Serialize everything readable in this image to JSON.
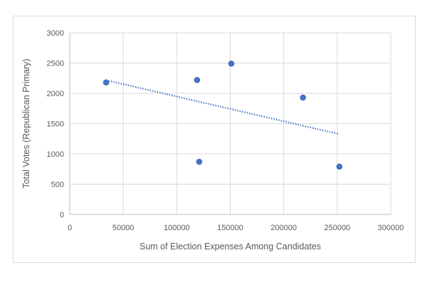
{
  "chart_data": {
    "type": "scatter",
    "title": "",
    "xlabel": "Sum of Election Expenses Among Candidates",
    "ylabel": "Total Votes (Republican Primary)",
    "xlim": [
      0,
      300000
    ],
    "ylim": [
      0,
      3000
    ],
    "x_ticks": [
      0,
      50000,
      100000,
      150000,
      200000,
      250000,
      300000
    ],
    "y_ticks": [
      0,
      500,
      1000,
      1500,
      2000,
      2500,
      3000
    ],
    "x_tick_labels": [
      "0",
      "50000",
      "100000",
      "150000",
      "200000",
      "250000",
      "300000"
    ],
    "y_tick_labels": [
      "0",
      "500",
      "1000",
      "1500",
      "2000",
      "2500",
      "3000"
    ],
    "grid": true,
    "legend": "none",
    "series": [
      {
        "x": [
          34000,
          119000,
          121000,
          151000,
          218000,
          252000
        ],
        "y": [
          2180,
          2220,
          870,
          2490,
          1930,
          790
        ],
        "color": "#4472c4",
        "marker": "circle"
      }
    ],
    "trendline": {
      "type": "linear",
      "style": "dotted",
      "color": "#4472c4",
      "x_start": 34000,
      "x_end": 252000
    },
    "colors": {
      "grid": "#d9d9d9",
      "axis": "#bfbfbf",
      "text": "#595959"
    }
  }
}
